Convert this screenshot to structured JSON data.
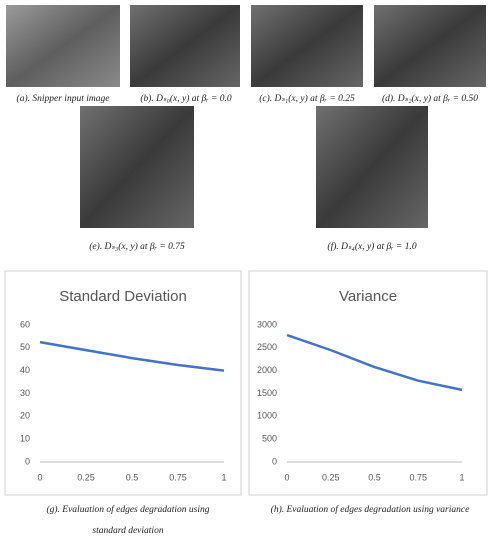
{
  "figure": {
    "captions": [
      "(a). Snipper input image",
      "(b). Dₛ₀(x, y) at βᵣ = 0.0",
      "(c). Dₛ₁(x, y) at βᵣ = 0.25",
      "(d). Dₛ₂(x, y) at βᵣ = 0.50",
      "(e). Dₛ₃(x, y) at βᵣ = 0.75",
      "(f). Dₛ₄(x, y) at βᵣ = 1.0"
    ],
    "chart_captions": [
      [
        "(g). Evaluation of edges degradation using",
        "standard deviation"
      ],
      [
        "(h). Evaluation of edges degradation using variance"
      ]
    ]
  },
  "chart_data": [
    {
      "type": "line",
      "title": "Standard Deviation",
      "x": [
        0,
        0.25,
        0.5,
        0.75,
        1
      ],
      "values": [
        52.5,
        49,
        45.5,
        42.5,
        40
      ],
      "color": "#4472c4",
      "xlim": [
        0,
        1
      ],
      "xticks": [
        0,
        0.25,
        0.5,
        0.75,
        1
      ],
      "ylim": [
        0,
        60
      ],
      "yticks": [
        0,
        10,
        20,
        30,
        40,
        50,
        60
      ],
      "grid": false
    },
    {
      "type": "line",
      "title": "Variance",
      "x": [
        0,
        0.25,
        0.5,
        0.75,
        1
      ],
      "values": [
        2780,
        2450,
        2080,
        1780,
        1580
      ],
      "color": "#4472c4",
      "xlim": [
        0,
        1
      ],
      "xticks": [
        0,
        0.25,
        0.5,
        0.75,
        1
      ],
      "ylim": [
        0,
        3000
      ],
      "yticks": [
        0,
        500,
        1000,
        1500,
        2000,
        2500,
        3000
      ],
      "grid": false
    }
  ]
}
